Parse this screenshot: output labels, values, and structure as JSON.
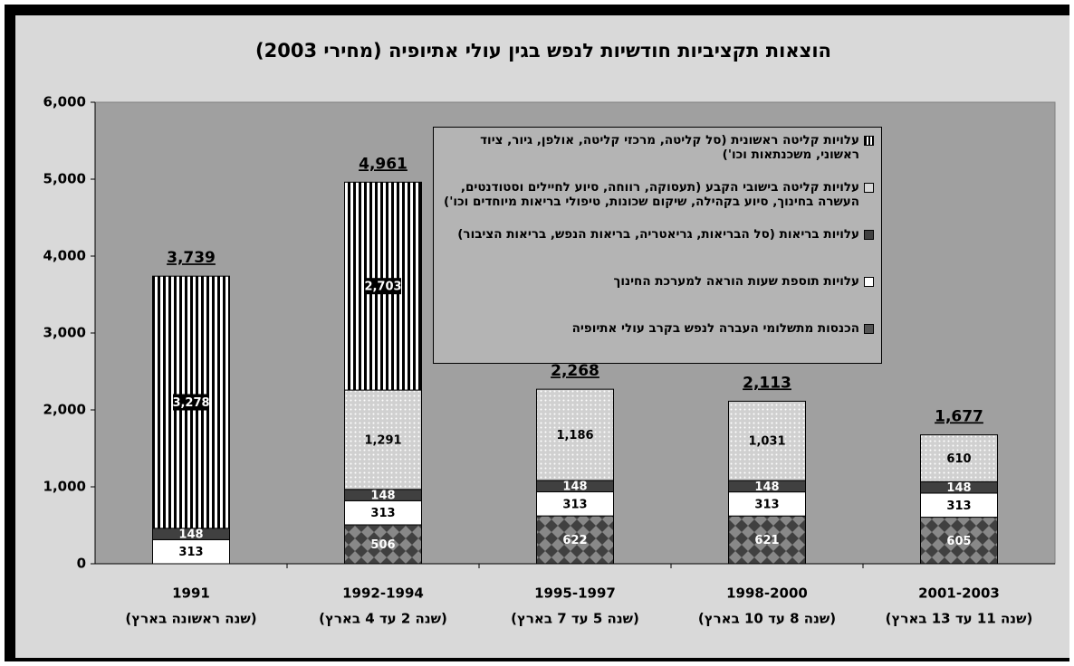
{
  "chart_data": {
    "type": "stacked-bar",
    "title": "הוצאות תקציביות חודשיות לנפש בגין עולי אתיופיה (מחירי 2003)",
    "categories": [
      "1991",
      "1992-1994",
      "1995-1997",
      "1998-2000",
      "2001-2003"
    ],
    "category_subtitles": [
      "(שנה ראשונה בארץ)",
      "(שנה 2 עד 4 בארץ)",
      "(שנה 5 עד 7 בארץ)",
      "(שנה 8 עד 10 בארץ)",
      "(שנה 11 עד 13 בארץ)"
    ],
    "series": [
      {
        "name": "הכנסות מתשלומי העברה לנפש בקרב עולי אתיופיה",
        "color": "#595959",
        "pattern": "diamonds",
        "label_color": "#ffffff",
        "values": [
          null,
          506,
          622,
          621,
          605
        ]
      },
      {
        "name": "עלויות תוספת שעות הוראה למערכת החינוך",
        "color": "#ffffff",
        "pattern": "solid",
        "label_color": "#000000",
        "values": [
          313,
          313,
          313,
          313,
          313
        ]
      },
      {
        "name": "עלויות בריאות (סל הבריאות, גריאטריה, בריאות הנפש, בריאות הציבור)",
        "color": "#404040",
        "pattern": "solid",
        "label_color": "#ffffff",
        "values": [
          148,
          148,
          148,
          148,
          148
        ]
      },
      {
        "name": "עלויות קליטה בישובי הקבע (תעסוקה, רווחה, סיוע לחיילים וסטודנטים, העשרה בחינוך, סיוע בקהילה, שיקום שכונות, טיפולי בריאות מיוחדים וכו')",
        "color": "#d0d0d0",
        "pattern": "dots",
        "label_color": "#000000",
        "values": [
          null,
          1291,
          1186,
          1031,
          610
        ],
        "value_labels": [
          null,
          "1,291",
          "1,186",
          "1,031",
          "610"
        ]
      },
      {
        "name": "עלויות קליטה ראשונית (סל קליטה, מרכזי קליטה, אולפן, גיור, ציוד ראשוני, משכנתאות וכו')",
        "color": "#ffffff",
        "pattern": "stripes",
        "label_color": "#ffffff",
        "label_box": "#000000",
        "values": [
          3278,
          2703,
          null,
          null,
          null
        ],
        "value_labels": [
          "3,278",
          "2,703",
          null,
          null,
          null
        ]
      }
    ],
    "totals": [
      3739,
      4961,
      2268,
      2113,
      1677
    ],
    "total_labels": [
      "3,739",
      "4,961",
      "2,268",
      "2,113",
      "1,677"
    ],
    "ylim": [
      0,
      6000
    ],
    "yticks": [
      0,
      {
        "value": 1000,
        "label": "1,000"
      },
      {
        "value": 2000,
        "label": "2,000"
      },
      {
        "value": 3000,
        "label": "3,000"
      },
      {
        "value": 4000,
        "label": "4,000"
      },
      {
        "value": 5000,
        "label": "5,000"
      },
      {
        "value": 6000,
        "label": "6,000"
      }
    ],
    "grid": false
  }
}
